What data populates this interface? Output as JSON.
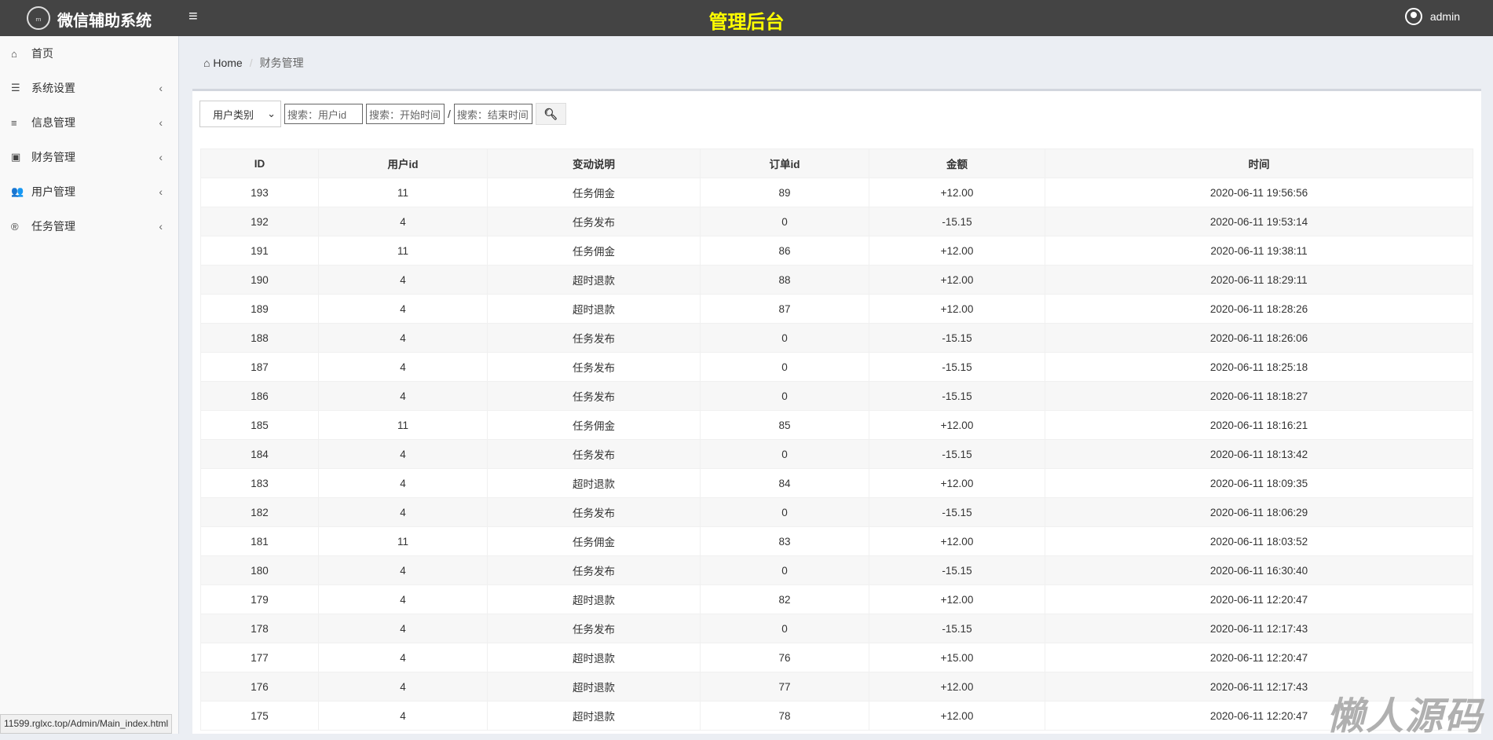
{
  "header": {
    "brand": "微信辅助系统",
    "title": "管理后台",
    "user": "admin",
    "menu_icon": "≡",
    "title_color": "#ffff00"
  },
  "sidebar": {
    "items": [
      {
        "label": "首页",
        "icon": "home-icon",
        "glyph": "⌂",
        "chev": ""
      },
      {
        "label": "系统设置",
        "icon": "server-icon",
        "glyph": "☰",
        "chev": "‹"
      },
      {
        "label": "信息管理",
        "icon": "list-icon",
        "glyph": "≡",
        "chev": "‹"
      },
      {
        "label": "财务管理",
        "icon": "money-icon",
        "glyph": "▣",
        "chev": "‹"
      },
      {
        "label": "用户管理",
        "icon": "users-icon",
        "glyph": "👥",
        "chev": "‹"
      },
      {
        "label": "任务管理",
        "icon": "registered-icon",
        "glyph": "®",
        "chev": "‹"
      }
    ]
  },
  "breadcrumb": {
    "home": "Home",
    "current": "财务管理"
  },
  "filters": {
    "select": "用户类别",
    "user_id": "搜索：用户id",
    "start": "搜索：开始时间",
    "end": "搜索：结束时间",
    "slash": "/"
  },
  "table": {
    "headers": [
      "ID",
      "用户id",
      "变动说明",
      "订单id",
      "金额",
      "时间"
    ],
    "rows": [
      [
        "193",
        "11",
        "任务佣金",
        "89",
        "+12.00",
        "2020-06-11 19:56:56"
      ],
      [
        "192",
        "4",
        "任务发布",
        "0",
        "-15.15",
        "2020-06-11 19:53:14"
      ],
      [
        "191",
        "11",
        "任务佣金",
        "86",
        "+12.00",
        "2020-06-11 19:38:11"
      ],
      [
        "190",
        "4",
        "超时退款",
        "88",
        "+12.00",
        "2020-06-11 18:29:11"
      ],
      [
        "189",
        "4",
        "超时退款",
        "87",
        "+12.00",
        "2020-06-11 18:28:26"
      ],
      [
        "188",
        "4",
        "任务发布",
        "0",
        "-15.15",
        "2020-06-11 18:26:06"
      ],
      [
        "187",
        "4",
        "任务发布",
        "0",
        "-15.15",
        "2020-06-11 18:25:18"
      ],
      [
        "186",
        "4",
        "任务发布",
        "0",
        "-15.15",
        "2020-06-11 18:18:27"
      ],
      [
        "185",
        "11",
        "任务佣金",
        "85",
        "+12.00",
        "2020-06-11 18:16:21"
      ],
      [
        "184",
        "4",
        "任务发布",
        "0",
        "-15.15",
        "2020-06-11 18:13:42"
      ],
      [
        "183",
        "4",
        "超时退款",
        "84",
        "+12.00",
        "2020-06-11 18:09:35"
      ],
      [
        "182",
        "4",
        "任务发布",
        "0",
        "-15.15",
        "2020-06-11 18:06:29"
      ],
      [
        "181",
        "11",
        "任务佣金",
        "83",
        "+12.00",
        "2020-06-11 18:03:52"
      ],
      [
        "180",
        "4",
        "任务发布",
        "0",
        "-15.15",
        "2020-06-11 16:30:40"
      ],
      [
        "179",
        "4",
        "超时退款",
        "82",
        "+12.00",
        "2020-06-11 12:20:47"
      ],
      [
        "178",
        "4",
        "任务发布",
        "0",
        "-15.15",
        "2020-06-11 12:17:43"
      ],
      [
        "177",
        "4",
        "超时退款",
        "76",
        "+15.00",
        "2020-06-11 12:20:47"
      ],
      [
        "176",
        "4",
        "超时退款",
        "77",
        "+12.00",
        "2020-06-11 12:17:43"
      ],
      [
        "175",
        "4",
        "超时退款",
        "78",
        "+12.00",
        "2020-06-11 12:20:47"
      ]
    ]
  },
  "status_url": "11599.rglxc.top/Admin/Main_index.html",
  "watermark": "懒人源码"
}
